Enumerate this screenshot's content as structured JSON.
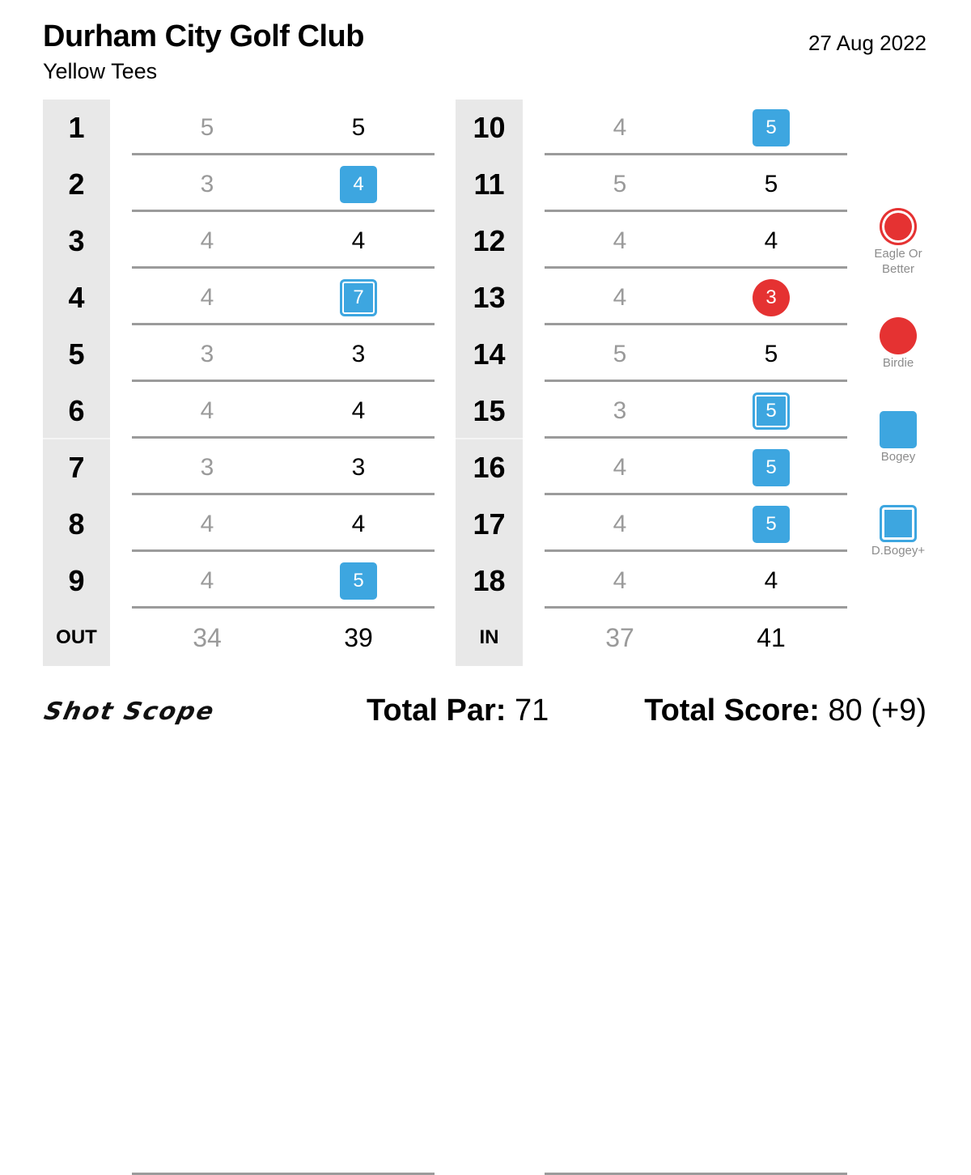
{
  "header": {
    "club_name": "Durham City Golf Club",
    "tees": "Yellow Tees",
    "date": "27 Aug 2022"
  },
  "front_nine": [
    {
      "hole": "1",
      "par": "5",
      "score": "5",
      "result": "par"
    },
    {
      "hole": "2",
      "par": "3",
      "score": "4",
      "result": "bogey"
    },
    {
      "hole": "3",
      "par": "4",
      "score": "4",
      "result": "par"
    },
    {
      "hole": "4",
      "par": "4",
      "score": "7",
      "result": "double-bogey-plus"
    },
    {
      "hole": "5",
      "par": "3",
      "score": "3",
      "result": "par"
    },
    {
      "hole": "6",
      "par": "4",
      "score": "4",
      "result": "par"
    },
    {
      "hole": "7",
      "par": "3",
      "score": "3",
      "result": "par"
    },
    {
      "hole": "8",
      "par": "4",
      "score": "4",
      "result": "par"
    },
    {
      "hole": "9",
      "par": "4",
      "score": "5",
      "result": "bogey"
    }
  ],
  "back_nine": [
    {
      "hole": "10",
      "par": "4",
      "score": "5",
      "result": "bogey"
    },
    {
      "hole": "11",
      "par": "5",
      "score": "5",
      "result": "par"
    },
    {
      "hole": "12",
      "par": "4",
      "score": "4",
      "result": "par"
    },
    {
      "hole": "13",
      "par": "4",
      "score": "3",
      "result": "birdie"
    },
    {
      "hole": "14",
      "par": "5",
      "score": "5",
      "result": "par"
    },
    {
      "hole": "15",
      "par": "3",
      "score": "5",
      "result": "double-bogey-plus"
    },
    {
      "hole": "16",
      "par": "4",
      "score": "5",
      "result": "bogey"
    },
    {
      "hole": "17",
      "par": "4",
      "score": "5",
      "result": "bogey"
    },
    {
      "hole": "18",
      "par": "4",
      "score": "4",
      "result": "par"
    }
  ],
  "out": {
    "label": "OUT",
    "par": "34",
    "score": "39"
  },
  "in": {
    "label": "IN",
    "par": "37",
    "score": "41"
  },
  "legend": {
    "eagle_line1": "Eagle Or",
    "eagle_line2": "Better",
    "birdie": "Birdie",
    "bogey": "Bogey",
    "dbogey": "D.Bogey+"
  },
  "footer": {
    "logo_text": "Shot Scope",
    "total_par_label": "Total Par:",
    "total_par_value": " 71",
    "total_score_label": "Total Score:",
    "total_score_value": " 80 (+9)"
  },
  "colors": {
    "bogey": "#3da6e0",
    "birdie": "#e53232",
    "hole_column_bg": "#e8e8e8",
    "par_text": "#9a9a9a",
    "row_line": "#9b9b9b"
  }
}
